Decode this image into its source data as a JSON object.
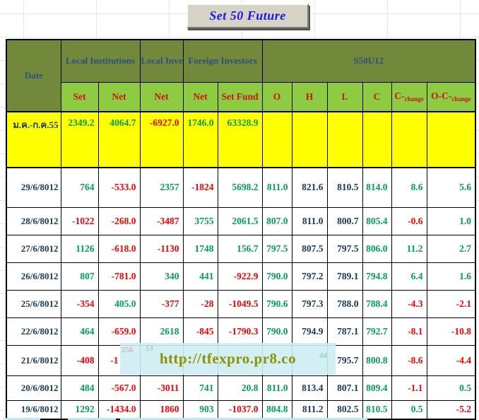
{
  "title_button": {
    "label": "Set 50  Future"
  },
  "colors": {
    "green": "#00a152",
    "red": "#fe0000",
    "navy": "#17375d",
    "header_olive": "#72883a",
    "header_light_green": "#8ecb43",
    "summary_yellow": "#ffff00",
    "header_text_blue": "#2b5080",
    "header_text_red": "#cc1414",
    "title_blue": "#1a16e8",
    "watermark_text": "#8f9100",
    "gridline": "#dfe6f1",
    "button_face": "#d6d2c6"
  },
  "table": {
    "group_headers": {
      "date": "Date",
      "local_institutions": "Local Institutions",
      "local_investors": "Local Investors",
      "foreign_investors": "Foreign Investors",
      "s50u12": "S50U12"
    },
    "sub_headers": [
      "Set",
      "Net",
      "Net",
      "Net",
      "Set Fund",
      "O",
      "H",
      "L",
      "C",
      {
        "text": "C-",
        "sub": "change"
      },
      {
        "text": "O-C-",
        "sub": "change"
      }
    ],
    "summary_row": {
      "cells": [
        [
          "ม.ค.-ก.ค.55",
          "navy"
        ],
        [
          "2349.2",
          "green"
        ],
        [
          "4064.7",
          "green"
        ],
        [
          "-6927.0",
          "red"
        ],
        [
          "1746.0",
          "green"
        ],
        [
          "63328.9",
          "green"
        ],
        [
          "",
          ""
        ],
        [
          "",
          ""
        ],
        [
          "",
          ""
        ],
        [
          "",
          ""
        ],
        [
          "",
          ""
        ],
        [
          "",
          ""
        ]
      ]
    },
    "rows": [
      {
        "cells": [
          [
            "29/6/8012",
            "navy"
          ],
          [
            "764",
            "green"
          ],
          [
            "-533.0",
            "red"
          ],
          [
            "2357",
            "green"
          ],
          [
            "-1824",
            "red"
          ],
          [
            "5698.2",
            "green"
          ],
          [
            "811.0",
            "green"
          ],
          [
            "821.6",
            "navy"
          ],
          [
            "810.5",
            "navy"
          ],
          [
            "814.0",
            "green"
          ],
          [
            "8.6",
            "green"
          ],
          [
            "5.6",
            "green"
          ]
        ]
      },
      {
        "cells": [
          [
            "28/6/8012",
            "navy"
          ],
          [
            "-1022",
            "red"
          ],
          [
            "-268.0",
            "red"
          ],
          [
            "-3487",
            "red"
          ],
          [
            "3755",
            "green"
          ],
          [
            "2061.5",
            "green"
          ],
          [
            "807.0",
            "green"
          ],
          [
            "811.0",
            "navy"
          ],
          [
            "800.7",
            "navy"
          ],
          [
            "805.4",
            "green"
          ],
          [
            "-0.6",
            "red"
          ],
          [
            "1.0",
            "green"
          ]
        ]
      },
      {
        "cells": [
          [
            "27/6/8012",
            "navy"
          ],
          [
            "1126",
            "green"
          ],
          [
            "-618.0",
            "red"
          ],
          [
            "-1130",
            "red"
          ],
          [
            "1748",
            "green"
          ],
          [
            "156.7",
            "green"
          ],
          [
            "797.5",
            "green"
          ],
          [
            "807.5",
            "navy"
          ],
          [
            "797.5",
            "navy"
          ],
          [
            "806.0",
            "green"
          ],
          [
            "11.2",
            "green"
          ],
          [
            "2.7",
            "green"
          ]
        ]
      },
      {
        "cells": [
          [
            "26/6/8012",
            "navy"
          ],
          [
            "807",
            "green"
          ],
          [
            "-781.0",
            "red"
          ],
          [
            "340",
            "green"
          ],
          [
            "441",
            "green"
          ],
          [
            "-922.9",
            "red"
          ],
          [
            "790.0",
            "green"
          ],
          [
            "797.2",
            "navy"
          ],
          [
            "789.1",
            "navy"
          ],
          [
            "794.8",
            "green"
          ],
          [
            "6.4",
            "green"
          ],
          [
            "1.6",
            "green"
          ]
        ]
      },
      {
        "cells": [
          [
            "25/6/8012",
            "navy"
          ],
          [
            "-354",
            "red"
          ],
          [
            "405.0",
            "green"
          ],
          [
            "-377",
            "red"
          ],
          [
            "-28",
            "red"
          ],
          [
            "-1049.5",
            "red"
          ],
          [
            "790.6",
            "green"
          ],
          [
            "797.3",
            "navy"
          ],
          [
            "788.0",
            "navy"
          ],
          [
            "788.4",
            "green"
          ],
          [
            "-4.3",
            "red"
          ],
          [
            "-2.1",
            "red"
          ]
        ]
      },
      {
        "cells": [
          [
            "22/6/8012",
            "navy"
          ],
          [
            "464",
            "green"
          ],
          [
            "-659.0",
            "red"
          ],
          [
            "2618",
            "green"
          ],
          [
            "-845",
            "red"
          ],
          [
            "-1790.3",
            "red"
          ],
          [
            "790.0",
            "green"
          ],
          [
            "794.9",
            "navy"
          ],
          [
            "787.1",
            "navy"
          ],
          [
            "792.7",
            "green"
          ],
          [
            "-8.1",
            "red"
          ],
          [
            "-10.8",
            "red"
          ]
        ]
      },
      {
        "cells": [
          [
            "21/6/8012",
            "navy"
          ],
          [
            "-408",
            "red"
          ],
          [
            "-1",
            "red",
            "partial"
          ],
          [
            "",
            ""
          ],
          [
            "",
            ""
          ],
          [
            "",
            ""
          ],
          [
            "",
            ""
          ],
          [
            "",
            ""
          ],
          [
            "795.7",
            "navy"
          ],
          [
            "800.8",
            "green"
          ],
          [
            "-8.6",
            "red"
          ],
          [
            "-4.4",
            "red"
          ]
        ]
      },
      {
        "cells": [
          [
            "20/6/8012",
            "navy"
          ],
          [
            "484",
            "green"
          ],
          [
            "-567.0",
            "red"
          ],
          [
            "-3011",
            "red"
          ],
          [
            "741",
            "green"
          ],
          [
            "20.8",
            "green"
          ],
          [
            "811.0",
            "green"
          ],
          [
            "813.4",
            "navy"
          ],
          [
            "807.1",
            "navy"
          ],
          [
            "809.4",
            "green"
          ],
          [
            "-1.1",
            "red"
          ],
          [
            "0.5",
            "green"
          ]
        ]
      },
      {
        "cells": [
          [
            "19/6/8012",
            "navy"
          ],
          [
            "1292",
            "green"
          ],
          [
            "-1434.0",
            "red"
          ],
          [
            "1860",
            "red"
          ],
          [
            "903",
            "green"
          ],
          [
            "-1037.0",
            "red"
          ],
          [
            "804.8",
            "green"
          ],
          [
            "811.2",
            "navy"
          ],
          [
            "802.5",
            "navy"
          ],
          [
            "810.5",
            "green"
          ],
          [
            "0.5",
            "green"
          ],
          [
            "-5.2",
            "red"
          ]
        ]
      }
    ]
  },
  "watermark": {
    "url": "http://tfexpro.pr8.co",
    "ghosts": [
      "256",
      "53",
      "44"
    ]
  }
}
